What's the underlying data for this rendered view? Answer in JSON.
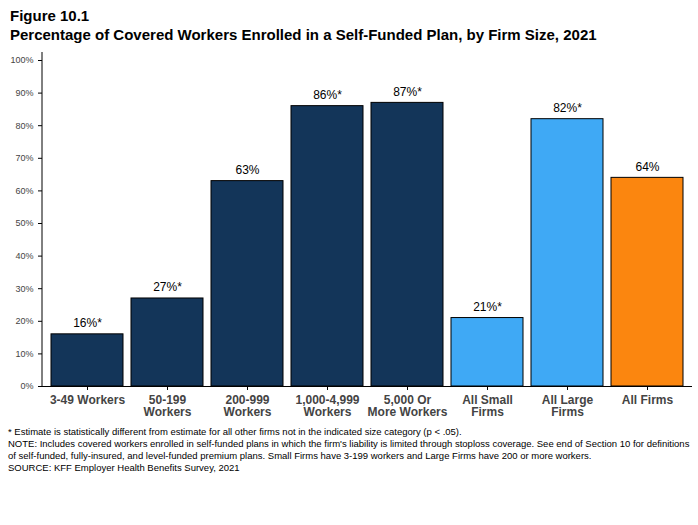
{
  "chart_data": {
    "type": "bar",
    "figure": "Figure 10.1",
    "title": "Percentage of Covered Workers Enrolled in a Self-Funded Plan, by Firm Size, 2021",
    "categories": [
      "3-49 Workers",
      "50-199\nWorkers",
      "200-999\nWorkers",
      "1,000-4,999\nWorkers",
      "5,000 Or\nMore Workers",
      "All Small\nFirms",
      "All Large\nFirms",
      "All Firms"
    ],
    "values": [
      16,
      27,
      63,
      86,
      87,
      21,
      82,
      64
    ],
    "value_labels": [
      "16%*",
      "27%*",
      "63%",
      "86%*",
      "87%*",
      "21%*",
      "82%*",
      "64%"
    ],
    "colors": [
      "#133559",
      "#133559",
      "#133559",
      "#133559",
      "#133559",
      "#3fa9f5",
      "#3fa9f5",
      "#fb860f"
    ],
    "data_labels": true,
    "grid": false,
    "ylim": [
      0,
      100
    ],
    "yticks": [
      {
        "value": 0,
        "label": "0%"
      },
      {
        "value": 10,
        "label": "10%"
      },
      {
        "value": 20,
        "label": "20%"
      },
      {
        "value": 30,
        "label": "30%"
      },
      {
        "value": 40,
        "label": "40%"
      },
      {
        "value": 50,
        "label": "50%"
      },
      {
        "value": 60,
        "label": "60%"
      },
      {
        "value": 70,
        "label": "70%"
      },
      {
        "value": 80,
        "label": "80%"
      },
      {
        "value": 90,
        "label": "90%"
      },
      {
        "value": 100,
        "label": "100%"
      }
    ],
    "notes": [
      "* Estimate is statistically different from estimate for all other firms not in the indicated size category (p < .05).",
      "NOTE: Includes covered workers enrolled in self-funded plans in which the firm's liability is limited through stoploss coverage. See end of Section 10 for definitions of self-funded, fully-insured, and level-funded premium plans. Small Firms have 3-199 workers and Large Firms have 200 or more workers.",
      "SOURCE: KFF Employer Health Benefits Survey, 2021"
    ]
  }
}
